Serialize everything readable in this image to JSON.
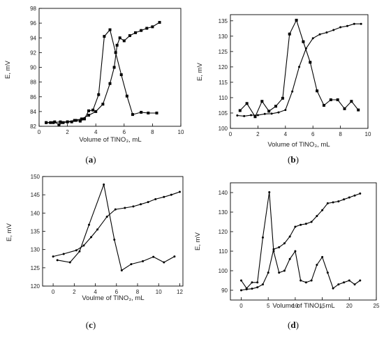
{
  "figure": {
    "panel_labels": [
      "(a)",
      "(b)",
      "(c)",
      "(d)"
    ]
  },
  "chart_data": [
    {
      "type": "line",
      "panel": "(a)",
      "xlabel": "Volume of TlNO₃, mL",
      "ylabel": "E, mV",
      "xlim": [
        0,
        10
      ],
      "ylim": [
        82,
        98
      ],
      "xticks": [
        0,
        2,
        4,
        6,
        8,
        10
      ],
      "yticks": [
        82,
        84,
        86,
        88,
        90,
        92,
        94,
        96,
        98
      ],
      "grid": false,
      "series": [
        {
          "marker": "square",
          "points": [
            [
              0.5,
              82.5
            ],
            [
              0.8,
              82.5
            ],
            [
              1.1,
              82.6
            ],
            [
              1.4,
              82.2
            ],
            [
              1.7,
              82.5
            ],
            [
              2.0,
              82.6
            ],
            [
              2.3,
              82.6
            ],
            [
              2.6,
              82.8
            ],
            [
              2.9,
              82.7
            ],
            [
              3.2,
              83.0
            ],
            [
              3.5,
              84.1
            ],
            [
              3.8,
              84.2
            ],
            [
              4.2,
              86.3
            ],
            [
              4.6,
              94.2
            ],
            [
              5.0,
              95.1
            ],
            [
              5.4,
              92.0
            ],
            [
              5.8,
              89.0
            ],
            [
              6.2,
              86.1
            ],
            [
              6.6,
              83.6
            ],
            [
              7.2,
              83.9
            ],
            [
              7.7,
              83.8
            ],
            [
              8.3,
              83.8
            ]
          ]
        },
        {
          "marker": "square",
          "points": [
            [
              0.5,
              82.5
            ],
            [
              1.0,
              82.5
            ],
            [
              1.5,
              82.6
            ],
            [
              2.0,
              82.6
            ],
            [
              2.5,
              82.8
            ],
            [
              3.0,
              83.0
            ],
            [
              3.5,
              83.5
            ],
            [
              4.0,
              84.0
            ],
            [
              4.5,
              85.0
            ],
            [
              5.0,
              87.8
            ],
            [
              5.3,
              90.0
            ],
            [
              5.5,
              93.0
            ],
            [
              5.7,
              94.0
            ],
            [
              6.0,
              93.6
            ],
            [
              6.4,
              94.3
            ],
            [
              6.8,
              94.7
            ],
            [
              7.2,
              95.0
            ],
            [
              7.6,
              95.3
            ],
            [
              8.0,
              95.5
            ],
            [
              8.5,
              96.1
            ]
          ]
        }
      ]
    },
    {
      "type": "line",
      "panel": "(b)",
      "xlabel": "Volume of TlNO₃, mL",
      "ylabel": "E, mV",
      "xlim": [
        0,
        10
      ],
      "ylim": [
        100,
        137
      ],
      "xticks": [
        0,
        2,
        4,
        6,
        8,
        10
      ],
      "yticks": [
        100,
        105,
        110,
        115,
        120,
        125,
        130,
        135
      ],
      "grid": false,
      "series": [
        {
          "marker": "square",
          "points": [
            [
              0.7,
              105.8
            ],
            [
              1.2,
              108.1
            ],
            [
              1.8,
              103.8
            ],
            [
              2.3,
              108.8
            ],
            [
              2.8,
              105.6
            ],
            [
              3.3,
              107.2
            ],
            [
              3.8,
              109.8
            ],
            [
              4.3,
              130.7
            ],
            [
              4.8,
              135.2
            ],
            [
              5.3,
              128.2
            ],
            [
              5.8,
              121.5
            ],
            [
              6.3,
              112.2
            ],
            [
              6.8,
              107.5
            ],
            [
              7.3,
              109.3
            ],
            [
              7.8,
              109.3
            ],
            [
              8.3,
              106.4
            ],
            [
              8.8,
              108.8
            ],
            [
              9.3,
              106.0
            ]
          ]
        },
        {
          "marker": "dot",
          "points": [
            [
              0.5,
              104.2
            ],
            [
              1.0,
              104.0
            ],
            [
              1.5,
              104.3
            ],
            [
              2.0,
              104.3
            ],
            [
              2.5,
              104.7
            ],
            [
              3.0,
              104.8
            ],
            [
              3.5,
              105.2
            ],
            [
              4.0,
              106.0
            ],
            [
              4.5,
              112.0
            ],
            [
              5.0,
              120.0
            ],
            [
              5.5,
              126.0
            ],
            [
              6.0,
              129.3
            ],
            [
              6.5,
              130.6
            ],
            [
              7.0,
              131.2
            ],
            [
              7.5,
              132.0
            ],
            [
              8.0,
              132.9
            ],
            [
              8.5,
              133.3
            ],
            [
              9.0,
              134.0
            ],
            [
              9.5,
              134.0
            ]
          ]
        }
      ]
    },
    {
      "type": "line",
      "panel": "(c)",
      "xlabel": "Voulme of TlNO₃, mL",
      "ylabel": "E, mV",
      "xlim": [
        -1,
        12.3
      ],
      "ylim": [
        120,
        150
      ],
      "xticks": [
        0,
        2,
        4,
        6,
        8,
        10,
        12
      ],
      "yticks": [
        120,
        125,
        130,
        135,
        140,
        145,
        150
      ],
      "grid": false,
      "series": [
        {
          "marker": "dot",
          "points": [
            [
              0.4,
              127.1
            ],
            [
              1.6,
              126.5
            ],
            [
              2.5,
              129.5
            ],
            [
              3.4,
              136.8
            ],
            [
              4.8,
              147.8
            ],
            [
              5.8,
              132.7
            ],
            [
              6.5,
              124.3
            ],
            [
              7.4,
              126.0
            ],
            [
              8.5,
              126.8
            ],
            [
              9.5,
              128.0
            ],
            [
              10.5,
              126.5
            ],
            [
              11.5,
              128.1
            ]
          ]
        },
        {
          "marker": "dot",
          "points": [
            [
              0.0,
              128.1
            ],
            [
              1.0,
              128.8
            ],
            [
              2.2,
              129.8
            ],
            [
              2.9,
              131.1
            ],
            [
              3.6,
              133.4
            ],
            [
              4.2,
              135.5
            ],
            [
              5.1,
              139.0
            ],
            [
              5.9,
              141.0
            ],
            [
              6.8,
              141.4
            ],
            [
              7.6,
              141.8
            ],
            [
              8.3,
              142.4
            ],
            [
              9.0,
              143.0
            ],
            [
              9.7,
              143.8
            ],
            [
              10.5,
              144.4
            ],
            [
              11.2,
              145.0
            ],
            [
              12.0,
              145.8
            ]
          ]
        }
      ]
    },
    {
      "type": "line",
      "panel": "(d)",
      "xlabel": "Volume of TlNO₃, mL",
      "ylabel": "E, mV",
      "xlim": [
        -2,
        25
      ],
      "ylim": [
        85,
        145
      ],
      "xticks": [
        0,
        5,
        10,
        15,
        20,
        25
      ],
      "yticks": [
        90,
        100,
        110,
        120,
        130,
        140
      ],
      "grid": false,
      "series": [
        {
          "marker": "dot",
          "points": [
            [
              0.0,
              95.0
            ],
            [
              1.0,
              91.0
            ],
            [
              2.0,
              94.0
            ],
            [
              3.0,
              94.0
            ],
            [
              4.0,
              117.0
            ],
            [
              5.2,
              140.2
            ],
            [
              6.0,
              110.0
            ],
            [
              7.0,
              99.0
            ],
            [
              8.0,
              100.0
            ],
            [
              9.0,
              106.0
            ],
            [
              10.0,
              110.0
            ],
            [
              11.0,
              95.0
            ],
            [
              12.0,
              94.0
            ],
            [
              13.0,
              95.0
            ],
            [
              14.0,
              103.0
            ],
            [
              15.0,
              107.0
            ],
            [
              16.0,
              99.0
            ],
            [
              17.0,
              91.0
            ],
            [
              18.0,
              93.0
            ],
            [
              19.0,
              94.0
            ],
            [
              20.0,
              95.0
            ],
            [
              21.0,
              93.0
            ],
            [
              22.0,
              95.0
            ]
          ]
        },
        {
          "marker": "dot",
          "points": [
            [
              0.0,
              90.0
            ],
            [
              1.0,
              90.5
            ],
            [
              2.0,
              90.8
            ],
            [
              3.0,
              91.5
            ],
            [
              4.0,
              93.0
            ],
            [
              5.0,
              99.0
            ],
            [
              6.0,
              111.0
            ],
            [
              7.0,
              112.0
            ],
            [
              8.0,
              114.0
            ],
            [
              9.0,
              117.5
            ],
            [
              10.0,
              122.5
            ],
            [
              11.0,
              123.5
            ],
            [
              12.0,
              124.0
            ],
            [
              13.0,
              125.0
            ],
            [
              14.0,
              128.0
            ],
            [
              15.0,
              131.0
            ],
            [
              16.0,
              134.5
            ],
            [
              17.0,
              135.0
            ],
            [
              18.0,
              135.5
            ],
            [
              19.0,
              136.5
            ],
            [
              20.0,
              137.5
            ],
            [
              21.0,
              138.5
            ],
            [
              22.0,
              139.5
            ]
          ]
        }
      ]
    }
  ]
}
